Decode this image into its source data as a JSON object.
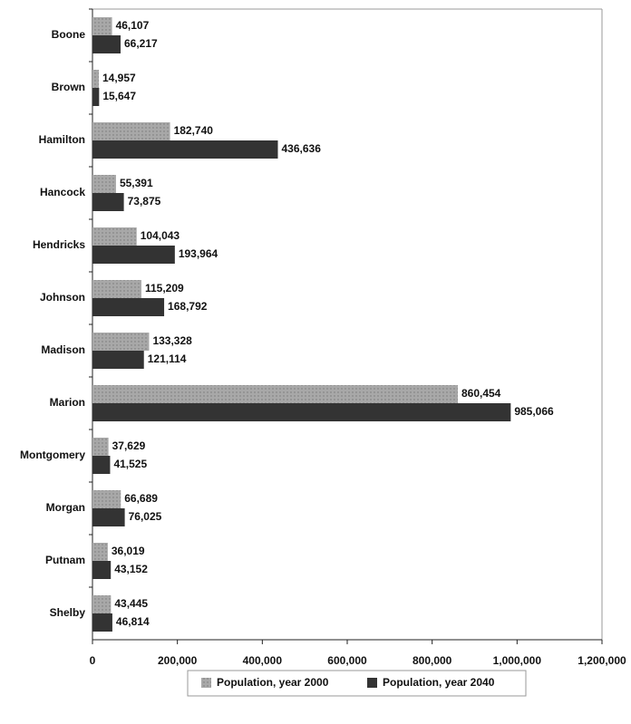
{
  "chart_data": {
    "type": "hbar",
    "categories": [
      "Boone",
      "Brown",
      "Hamilton",
      "Hancock",
      "Hendricks",
      "Johnson",
      "Madison",
      "Marion",
      "Montgomery",
      "Morgan",
      "Putnam",
      "Shelby"
    ],
    "series": [
      {
        "name": "Population, year 2000",
        "color": "#a8a8a8",
        "values": [
          46107,
          14957,
          182740,
          55391,
          104043,
          115209,
          133328,
          860454,
          37629,
          66689,
          36019,
          43445
        ],
        "value_labels": [
          "46,107",
          "14,957",
          "182,740",
          "55,391",
          "104,043",
          "115,209",
          "133,328",
          "860,454",
          "37,629",
          "66,689",
          "36,019",
          "43,445"
        ]
      },
      {
        "name": "Population, year 2040",
        "color": "#333333",
        "values": [
          66217,
          15647,
          436636,
          73875,
          193964,
          168792,
          121114,
          985066,
          41525,
          76025,
          43152,
          46814
        ],
        "value_labels": [
          "66,217",
          "15,647",
          "436,636",
          "73,875",
          "193,964",
          "168,792",
          "121,114",
          "985,066",
          "41,525",
          "76,025",
          "43,152",
          "46,814"
        ]
      }
    ],
    "xlim": [
      0,
      1200000
    ],
    "xticks": [
      0,
      {
        "value": 200000,
        "label": "200,000"
      },
      {
        "value": 400000,
        "label": "400,000"
      },
      {
        "value": 600000,
        "label": "600,000"
      },
      {
        "value": 800000,
        "label": "800,000"
      },
      {
        "value": 1000000,
        "label": "1,000,000"
      },
      {
        "value": 1200000,
        "label": "1,200,000"
      }
    ],
    "legend": "bottom"
  }
}
